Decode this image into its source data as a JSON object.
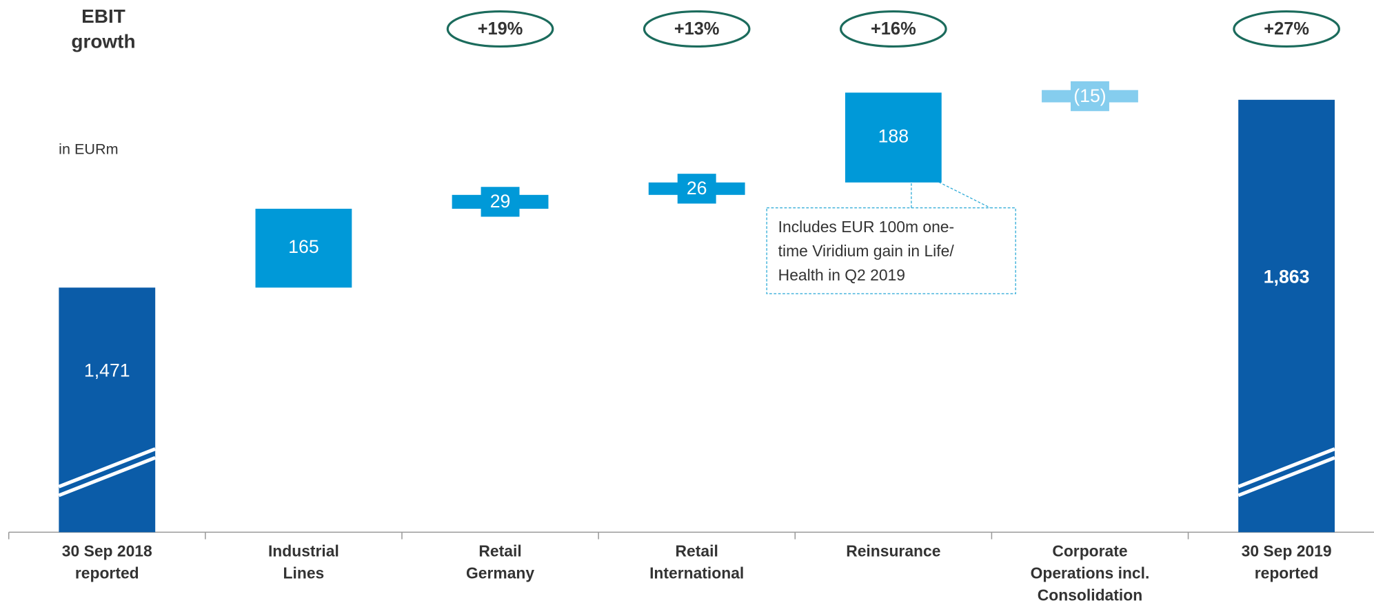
{
  "chart_data": {
    "type": "waterfall",
    "title": [
      "EBIT",
      "growth"
    ],
    "subtitle": "in EURm",
    "categories": [
      [
        "30 Sep 2018",
        "reported"
      ],
      [
        "Industrial",
        "Lines"
      ],
      [
        "Retail",
        "Germany"
      ],
      [
        "Retail",
        "International"
      ],
      [
        "Reinsurance"
      ],
      [
        "Corporate",
        "Operations incl.",
        "Consolidation"
      ],
      [
        "30 Sep 2019",
        "reported"
      ]
    ],
    "values": [
      1471,
      165,
      29,
      26,
      188,
      -15,
      1863
    ],
    "value_labels": [
      "1,471",
      "165",
      "29",
      "26",
      "188",
      "(15)",
      "1,863"
    ],
    "measures": [
      "total",
      "relative",
      "relative",
      "relative",
      "relative",
      "relative",
      "total"
    ],
    "growth": [
      null,
      null,
      "+19%",
      "+13%",
      "+16%",
      null,
      "+27%"
    ],
    "colors": {
      "total": "#0b5ca8",
      "increase": "#0099d8",
      "decrease": "#85cdee",
      "growth": "#1b6b5c"
    },
    "note": [
      "Includes EUR 100m one-",
      "time Viridium gain in Life/",
      "Health in Q2 2019"
    ]
  }
}
